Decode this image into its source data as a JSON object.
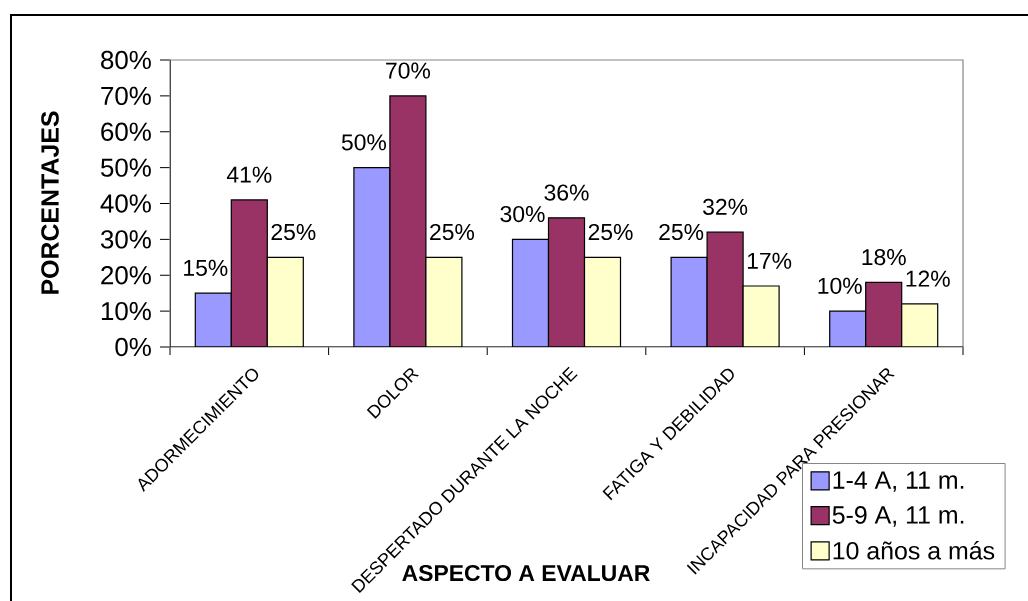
{
  "chart_data": {
    "type": "bar",
    "xlabel": "ASPECTO A EVALUAR",
    "ylabel": "PORCENTAJES",
    "categories": [
      "ADORMECIMIENTO",
      "DOLOR",
      "DESPERTADO DURANTE LA NOCHE",
      "FATIGA Y DEBILIDAD",
      "INCAPACIDAD PARA PRESIONAR"
    ],
    "series": [
      {
        "name": "1-4 A, 11 m.",
        "color": "#9999ff",
        "values": [
          15,
          50,
          30,
          25,
          10
        ],
        "value_labels": [
          "15%",
          "50%",
          "30%",
          "25%",
          "10%"
        ]
      },
      {
        "name": "5-9 A, 11 m.",
        "color": "#993366",
        "values": [
          41,
          70,
          36,
          32,
          18
        ],
        "value_labels": [
          "41%",
          "70%",
          "36%",
          "32%",
          "18%"
        ]
      },
      {
        "name": "10 años a más",
        "color": "#ffffcc",
        "values": [
          25,
          25,
          25,
          17,
          12
        ],
        "value_labels": [
          "25%",
          "25%",
          "25%",
          "17%",
          "12%"
        ]
      }
    ],
    "ylim": [
      0,
      80
    ],
    "yticks": [
      {
        "value": 0,
        "label": "0%"
      },
      {
        "value": 10,
        "label": "10%"
      },
      {
        "value": 20,
        "label": "20%"
      },
      {
        "value": 30,
        "label": "30%"
      },
      {
        "value": 40,
        "label": "40%"
      },
      {
        "value": 50,
        "label": "50%"
      },
      {
        "value": 60,
        "label": "60%"
      },
      {
        "value": 70,
        "label": "70%"
      },
      {
        "value": 80,
        "label": "80%"
      }
    ],
    "grid": false,
    "legend": "bottom right"
  }
}
